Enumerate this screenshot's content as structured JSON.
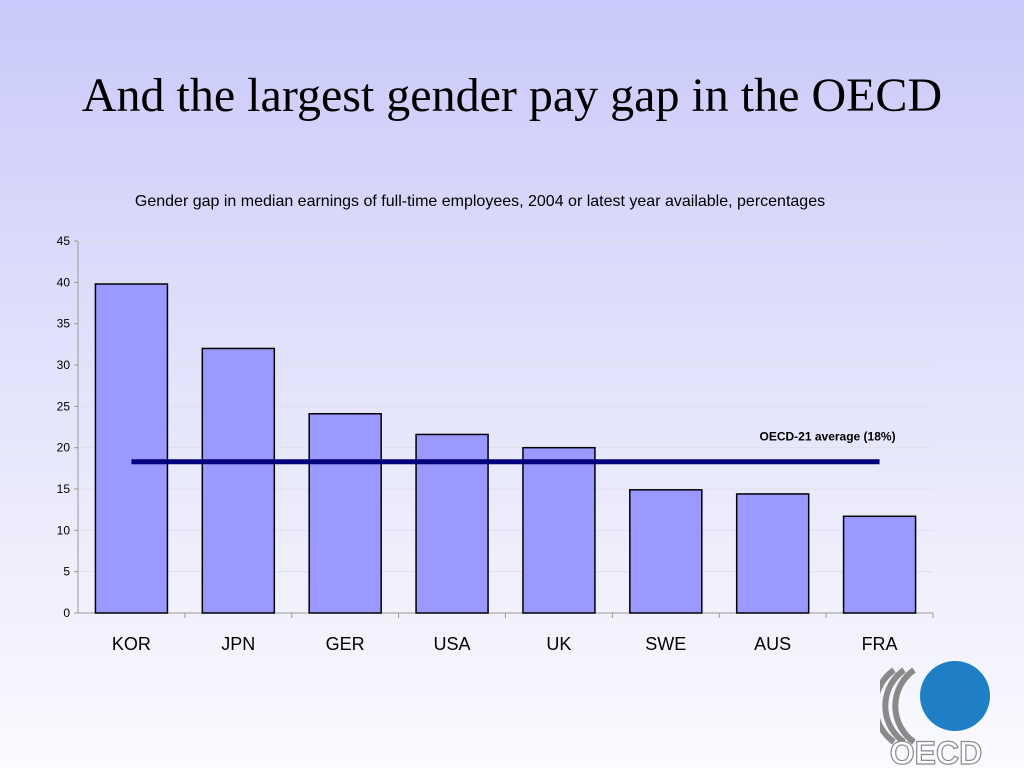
{
  "slide": {
    "title": "And the largest gender pay gap in the OECD"
  },
  "chart_data": {
    "type": "bar",
    "title": "Gender gap in median earnings of full-time employees, 2004 or latest year available, percentages",
    "categories": [
      "KOR",
      "JPN",
      "GER",
      "USA",
      "UK",
      "SWE",
      "AUS",
      "FRA"
    ],
    "values": [
      39.8,
      32,
      24.1,
      21.6,
      20,
      14.9,
      14.4,
      11.7
    ],
    "ylim": [
      0,
      45
    ],
    "yticks": [
      0,
      5,
      10,
      15,
      20,
      25,
      30,
      35,
      40,
      45
    ],
    "grid": true,
    "reference_line": {
      "label": "OECD-21 average (18%)",
      "value": 18.3,
      "color": "#00007f"
    },
    "colors": {
      "bar_fill": "#9999ff",
      "bar_stroke": "#000000",
      "grid": "#e0e0ec",
      "axis": "#999999"
    }
  },
  "logo": {
    "text": "OECD",
    "colors": {
      "circle": "#1f7fc6",
      "gray": "#8a8a8a"
    }
  }
}
